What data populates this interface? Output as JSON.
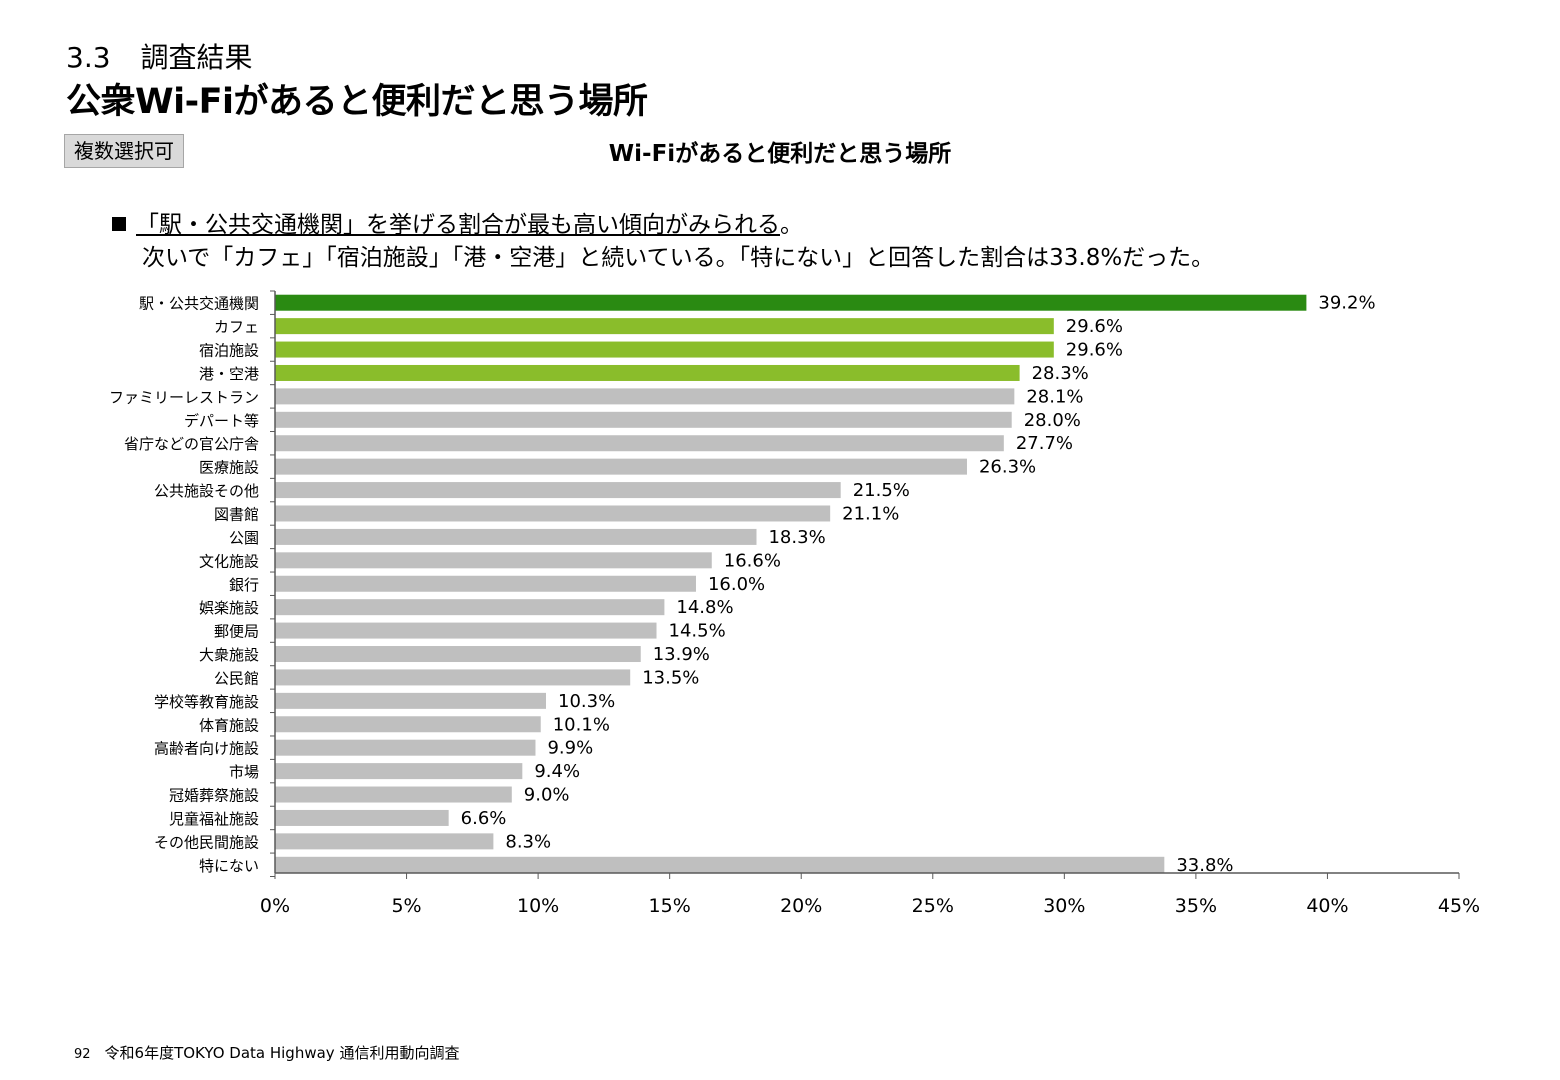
{
  "header": {
    "section_number": "3.3",
    "section_label": "調査結果",
    "page_title": "公衆Wi-Fiがあると便利だと思う場所",
    "badge": "複数選択可"
  },
  "summary": {
    "headline": "「駅・公共交通機関」を挙げる割合が最も高い傾向がみられる",
    "headline_end": "。",
    "detail": "次いで「カフェ」「宿泊施設」「港・空港」と続いている。「特にない」と回答した割合は33.8%だった。"
  },
  "footer": {
    "page_number": "92",
    "source": "令和6年度TOKYO Data Highway 通信利用動向調査"
  },
  "colors": {
    "top": "#2a8a12",
    "highlight": "#8abd2b",
    "default": "#bfbfbf",
    "axis": "#595959"
  },
  "chart_data": {
    "type": "bar",
    "orientation": "horizontal",
    "title": "Wi-Fiがあると便利だと思う場所",
    "categories": [
      "駅・公共交通機関",
      "カフェ",
      "宿泊施設",
      "港・空港",
      "ファミリーレストラン",
      "デパート等",
      "省庁などの官公庁舎",
      "医療施設",
      "公共施設その他",
      "図書館",
      "公園",
      "文化施設",
      "銀行",
      "娯楽施設",
      "郵便局",
      "大衆施設",
      "公民館",
      "学校等教育施設",
      "体育施設",
      "高齢者向け施設",
      "市場",
      "冠婚葬祭施設",
      "児童福祉施設",
      "その他民間施設",
      "特にない"
    ],
    "values": [
      39.2,
      29.6,
      29.6,
      28.3,
      28.1,
      28.0,
      27.7,
      26.3,
      21.5,
      21.1,
      18.3,
      16.6,
      16.0,
      14.8,
      14.5,
      13.9,
      13.5,
      10.3,
      10.1,
      9.9,
      9.4,
      9.0,
      6.6,
      8.3,
      33.8
    ],
    "value_labels": [
      "39.2%",
      "29.6%",
      "29.6%",
      "28.3%",
      "28.1%",
      "28.0%",
      "27.7%",
      "26.3%",
      "21.5%",
      "21.1%",
      "18.3%",
      "16.6%",
      "16.0%",
      "14.8%",
      "14.5%",
      "13.9%",
      "13.5%",
      "10.3%",
      "10.1%",
      "9.9%",
      "9.4%",
      "9.0%",
      "6.6%",
      "8.3%",
      "33.8%"
    ],
    "bar_color_keys": [
      "top",
      "highlight",
      "highlight",
      "highlight",
      "default",
      "default",
      "default",
      "default",
      "default",
      "default",
      "default",
      "default",
      "default",
      "default",
      "default",
      "default",
      "default",
      "default",
      "default",
      "default",
      "default",
      "default",
      "default",
      "default",
      "default"
    ],
    "xlim": [
      0,
      45
    ],
    "xticks": [
      0,
      5,
      10,
      15,
      20,
      25,
      30,
      35,
      40,
      45
    ],
    "xtick_labels": [
      "0%",
      "5%",
      "10%",
      "15%",
      "20%",
      "25%",
      "30%",
      "35%",
      "40%",
      "45%"
    ],
    "grid": false,
    "legend": "none"
  }
}
